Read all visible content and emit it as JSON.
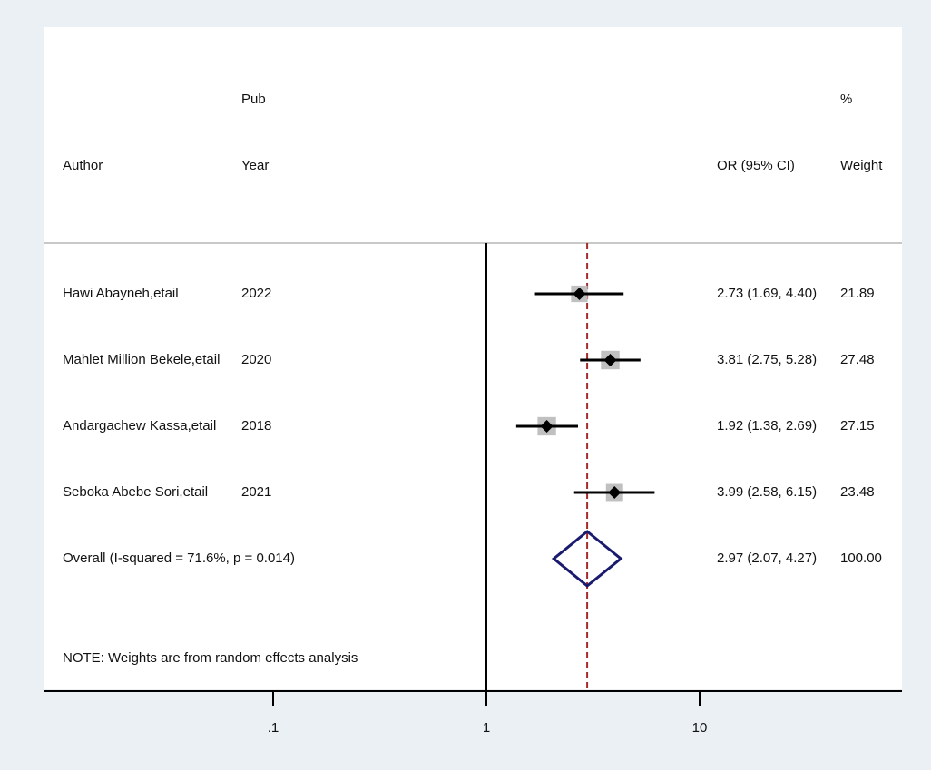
{
  "chart_data": {
    "type": "forest",
    "headers": {
      "author_top": "",
      "author": "Author",
      "year_top": "Pub",
      "year": "Year",
      "or_top": "",
      "or": "OR (95% CI)",
      "weight_top": "%",
      "weight": "Weight"
    },
    "studies": [
      {
        "author": "Hawi Abayneh,etail",
        "year": "2022",
        "or": 2.73,
        "lower": 1.69,
        "upper": 4.4,
        "or_text": "2.73 (1.69, 4.40)",
        "weight": 21.89,
        "weight_text": "21.89"
      },
      {
        "author": "Mahlet Million Bekele,etail",
        "year": "2020",
        "or": 3.81,
        "lower": 2.75,
        "upper": 5.28,
        "or_text": "3.81 (2.75, 5.28)",
        "weight": 27.48,
        "weight_text": "27.48"
      },
      {
        "author": "Andargachew Kassa,etail",
        "year": "2018",
        "or": 1.92,
        "lower": 1.38,
        "upper": 2.69,
        "or_text": "1.92 (1.38, 2.69)",
        "weight": 27.15,
        "weight_text": "27.15"
      },
      {
        "author": "Seboka Abebe Sori,etail",
        "year": "2021",
        "or": 3.99,
        "lower": 2.58,
        "upper": 6.15,
        "or_text": "3.99 (2.58, 6.15)",
        "weight": 23.48,
        "weight_text": "23.48"
      }
    ],
    "overall": {
      "label": "Overall  (I-squared = 71.6%, p = 0.014)",
      "or": 2.97,
      "lower": 2.07,
      "upper": 4.27,
      "or_text": "2.97 (2.07, 4.27)",
      "weight_text": "100.00"
    },
    "note": "NOTE: Weights are from random effects analysis",
    "x_axis": {
      "scale": "log",
      "ticks": [
        0.1,
        1,
        10
      ],
      "tick_labels": [
        ".1",
        "1",
        "10"
      ]
    },
    "null_line": 1,
    "colors": {
      "background": "#eaf0f3",
      "panel": "#ffffff",
      "ci_line": "#000000",
      "point": "#000000",
      "weight_box": "#c0c0c0",
      "diamond": "#1a1a6e",
      "overall_line": "#a52a2a",
      "divider": "#c8c8c8"
    }
  }
}
